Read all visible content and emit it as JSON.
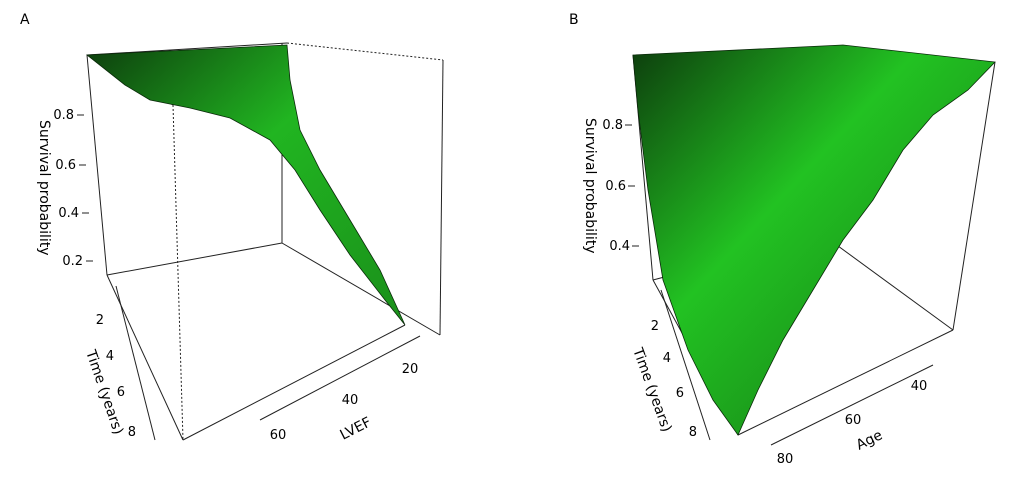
{
  "chart_data": [
    {
      "type": "surface",
      "panel_label": "A",
      "zlabel": "Survival probability",
      "z_ticks": [
        "0.2",
        "0.4",
        "0.6",
        "0.8"
      ],
      "ylabel": "Time (years)",
      "y_ticks": [
        "2",
        "4",
        "6",
        "8"
      ],
      "xlabel": "LVEF",
      "x_ticks": [
        "20",
        "40",
        "60"
      ],
      "surface_color": "#22cc22",
      "grid_color": "#0a2a0a"
    },
    {
      "type": "surface",
      "panel_label": "B",
      "zlabel": "Survival probability",
      "z_ticks": [
        "0.4",
        "0.6",
        "0.8"
      ],
      "ylabel": "Time (years)",
      "y_ticks": [
        "2",
        "4",
        "6",
        "8"
      ],
      "xlabel": "Age",
      "x_ticks": [
        "40",
        "60",
        "80"
      ],
      "surface_color": "#22cc22",
      "grid_color": "#0a2a0a"
    }
  ]
}
